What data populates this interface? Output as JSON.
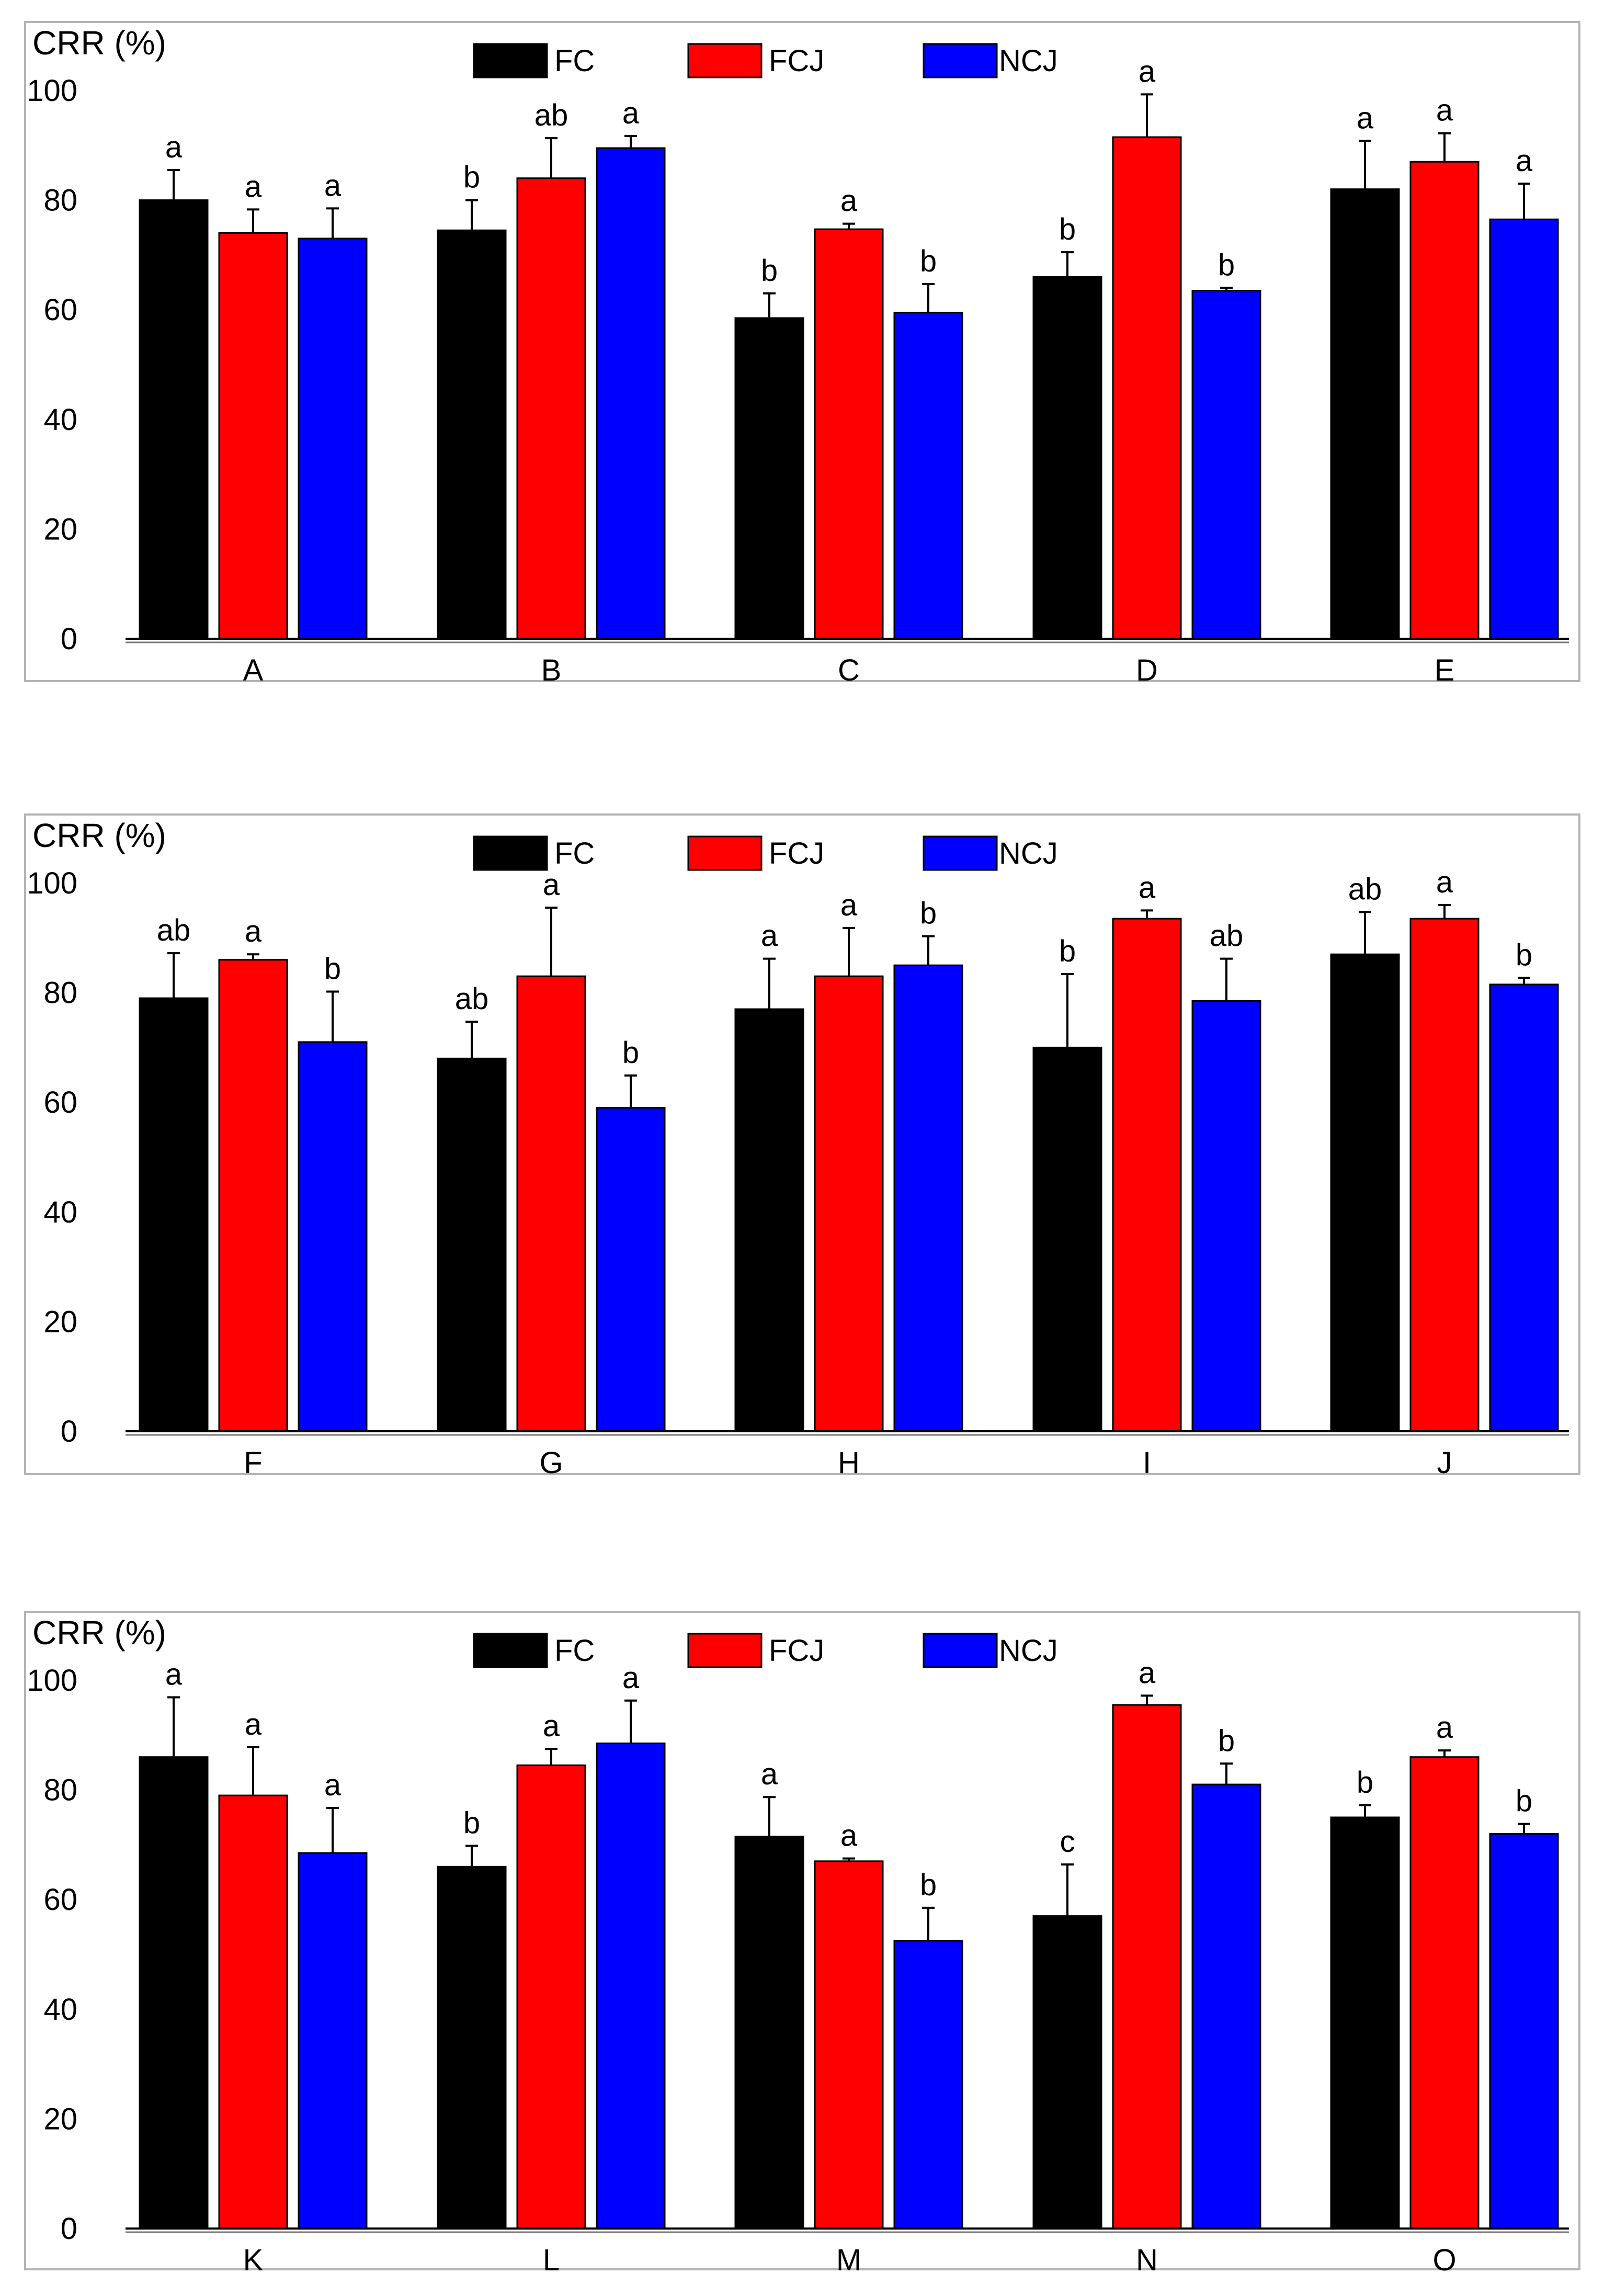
{
  "chart_data": [
    {
      "type": "bar",
      "ylabel": "CRR (%)",
      "ylim": [
        0,
        100
      ],
      "yticks": [
        0,
        20,
        40,
        60,
        80,
        100
      ],
      "grid": false,
      "legend": "top-center",
      "categories": [
        "A",
        "B",
        "C",
        "D",
        "E"
      ],
      "series": [
        {
          "name": "FC",
          "color": "#000000",
          "values": [
            80,
            74.5,
            58.5,
            66,
            82
          ],
          "errors": [
            5.5,
            5.5,
            4.5,
            4.5,
            8.8
          ],
          "labels": [
            "a",
            "b",
            "b",
            "b",
            "a"
          ]
        },
        {
          "name": "FCJ",
          "color": "#ff0000",
          "values": [
            74,
            84,
            74.7,
            91.5,
            87
          ],
          "errors": [
            4.3,
            7.3,
            1,
            7.8,
            5.2
          ],
          "labels": [
            "a",
            "ab",
            "a",
            "a",
            "a"
          ]
        },
        {
          "name": "NCJ",
          "color": "#0000ff",
          "values": [
            73,
            89.5,
            59.5,
            63.5,
            76.5
          ],
          "errors": [
            5.5,
            2.2,
            5.2,
            0.5,
            6.5
          ],
          "labels": [
            "a",
            "a",
            "b",
            "b",
            "a"
          ]
        }
      ]
    },
    {
      "type": "bar",
      "ylabel": "CRR (%)",
      "ylim": [
        0,
        100
      ],
      "yticks": [
        0,
        20,
        40,
        60,
        80,
        100
      ],
      "grid": false,
      "legend": "top-center",
      "categories": [
        "F",
        "G",
        "H",
        "I",
        "J"
      ],
      "series": [
        {
          "name": "FC",
          "color": "#000000",
          "values": [
            79,
            68,
            77,
            70,
            87
          ],
          "errors": [
            8.2,
            6.7,
            9.2,
            13.4,
            7.7
          ],
          "labels": [
            "ab",
            "ab",
            "a",
            "b",
            "ab"
          ]
        },
        {
          "name": "FCJ",
          "color": "#ff0000",
          "values": [
            86,
            83,
            83,
            93.5,
            93.5
          ],
          "errors": [
            1,
            12.5,
            8.8,
            1.5,
            2.5
          ],
          "labels": [
            "a",
            "a",
            "a",
            "a",
            "a"
          ]
        },
        {
          "name": "NCJ",
          "color": "#0000ff",
          "values": [
            71,
            59,
            85,
            78.5,
            81.5
          ],
          "errors": [
            9.2,
            5.9,
            5.3,
            7.7,
            1.2
          ],
          "labels": [
            "b",
            "b",
            "b",
            "ab",
            "b"
          ]
        }
      ]
    },
    {
      "type": "bar",
      "ylabel": "CRR (%)",
      "ylim": [
        0,
        100
      ],
      "yticks": [
        0,
        20,
        40,
        60,
        80,
        100
      ],
      "grid": false,
      "legend": "top-center",
      "categories": [
        "K",
        "L",
        "M",
        "N",
        "O"
      ],
      "series": [
        {
          "name": "FC",
          "color": "#000000",
          "values": [
            86,
            66,
            71.5,
            57,
            75
          ],
          "errors": [
            10.9,
            3.8,
            7.2,
            9.4,
            2.2
          ],
          "labels": [
            "a",
            "b",
            "a",
            "c",
            "b"
          ]
        },
        {
          "name": "FCJ",
          "color": "#ff0000",
          "values": [
            79,
            84.5,
            67,
            95.5,
            86
          ],
          "errors": [
            8.8,
            3,
            0.5,
            1.7,
            1.2
          ],
          "labels": [
            "a",
            "a",
            "a",
            "a",
            "a"
          ]
        },
        {
          "name": "NCJ",
          "color": "#0000ff",
          "values": [
            68.5,
            88.5,
            52.5,
            81,
            72
          ],
          "errors": [
            8.2,
            7.8,
            6,
            3.8,
            1.8
          ],
          "labels": [
            "a",
            "a",
            "b",
            "b",
            "b"
          ]
        }
      ]
    }
  ]
}
